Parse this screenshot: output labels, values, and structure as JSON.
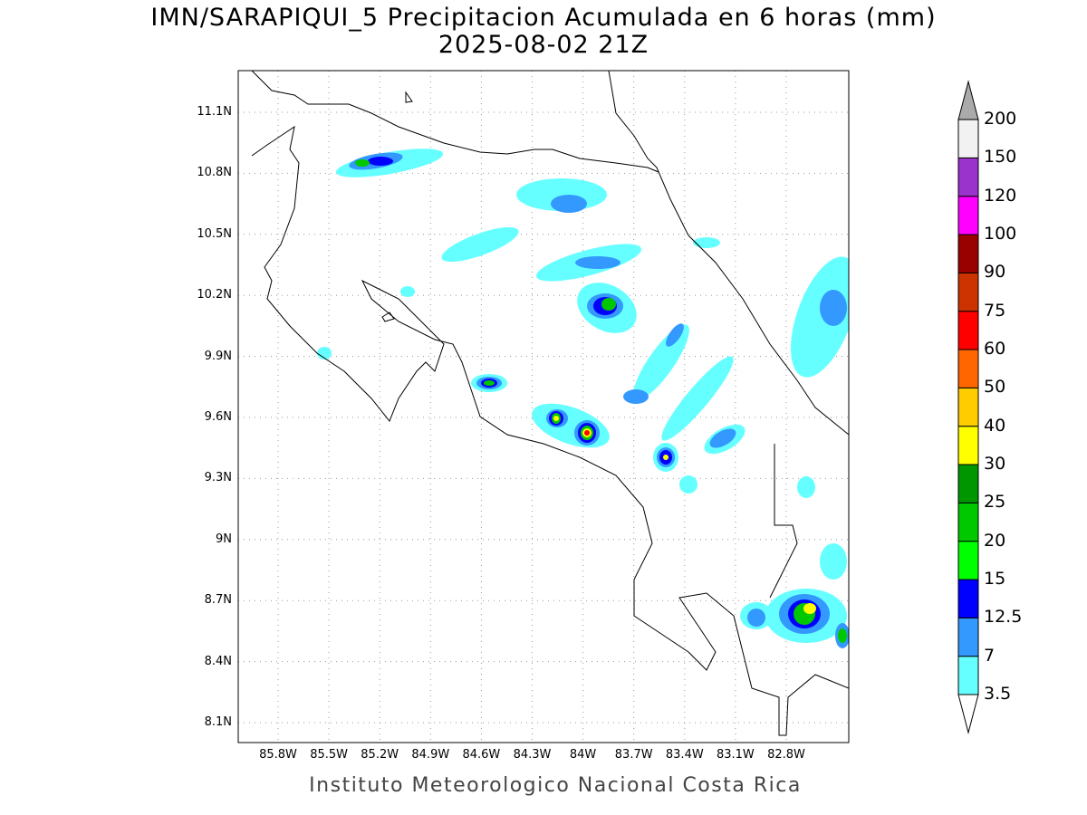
{
  "title": "IMN/SARAPIQUI_5 Precipitacion Acumulada en 6 horas (mm)",
  "subtitle": "2025-08-02 21Z",
  "credit": "Instituto Meteorologico Nacional Costa Rica",
  "lat_ticks": [
    "11.1N",
    "10.8N",
    "10.5N",
    "10.2N",
    "9.9N",
    "9.6N",
    "9.3N",
    "9N",
    "8.7N",
    "8.4N",
    "8.1N"
  ],
  "lon_ticks": [
    "85.8W",
    "85.5W",
    "85.2W",
    "84.9W",
    "84.6W",
    "84.3W",
    "84W",
    "83.7W",
    "83.4W",
    "83.1W",
    "82.8W"
  ],
  "colorbar": {
    "levels": [
      "3.5",
      "7",
      "12.5",
      "15",
      "20",
      "25",
      "30",
      "40",
      "50",
      "60",
      "75",
      "90",
      "100",
      "120",
      "150",
      "200"
    ],
    "colors": [
      "#66ffff",
      "#3399ff",
      "#0000ff",
      "#00ff00",
      "#00c800",
      "#009600",
      "#ffff00",
      "#ffcc00",
      "#ff6600",
      "#ff0000",
      "#cc3300",
      "#990000",
      "#ff00ff",
      "#9933cc",
      "#f2f2f2"
    ],
    "over_color": "#aaaaaa",
    "under_color": "#ffffff"
  }
}
